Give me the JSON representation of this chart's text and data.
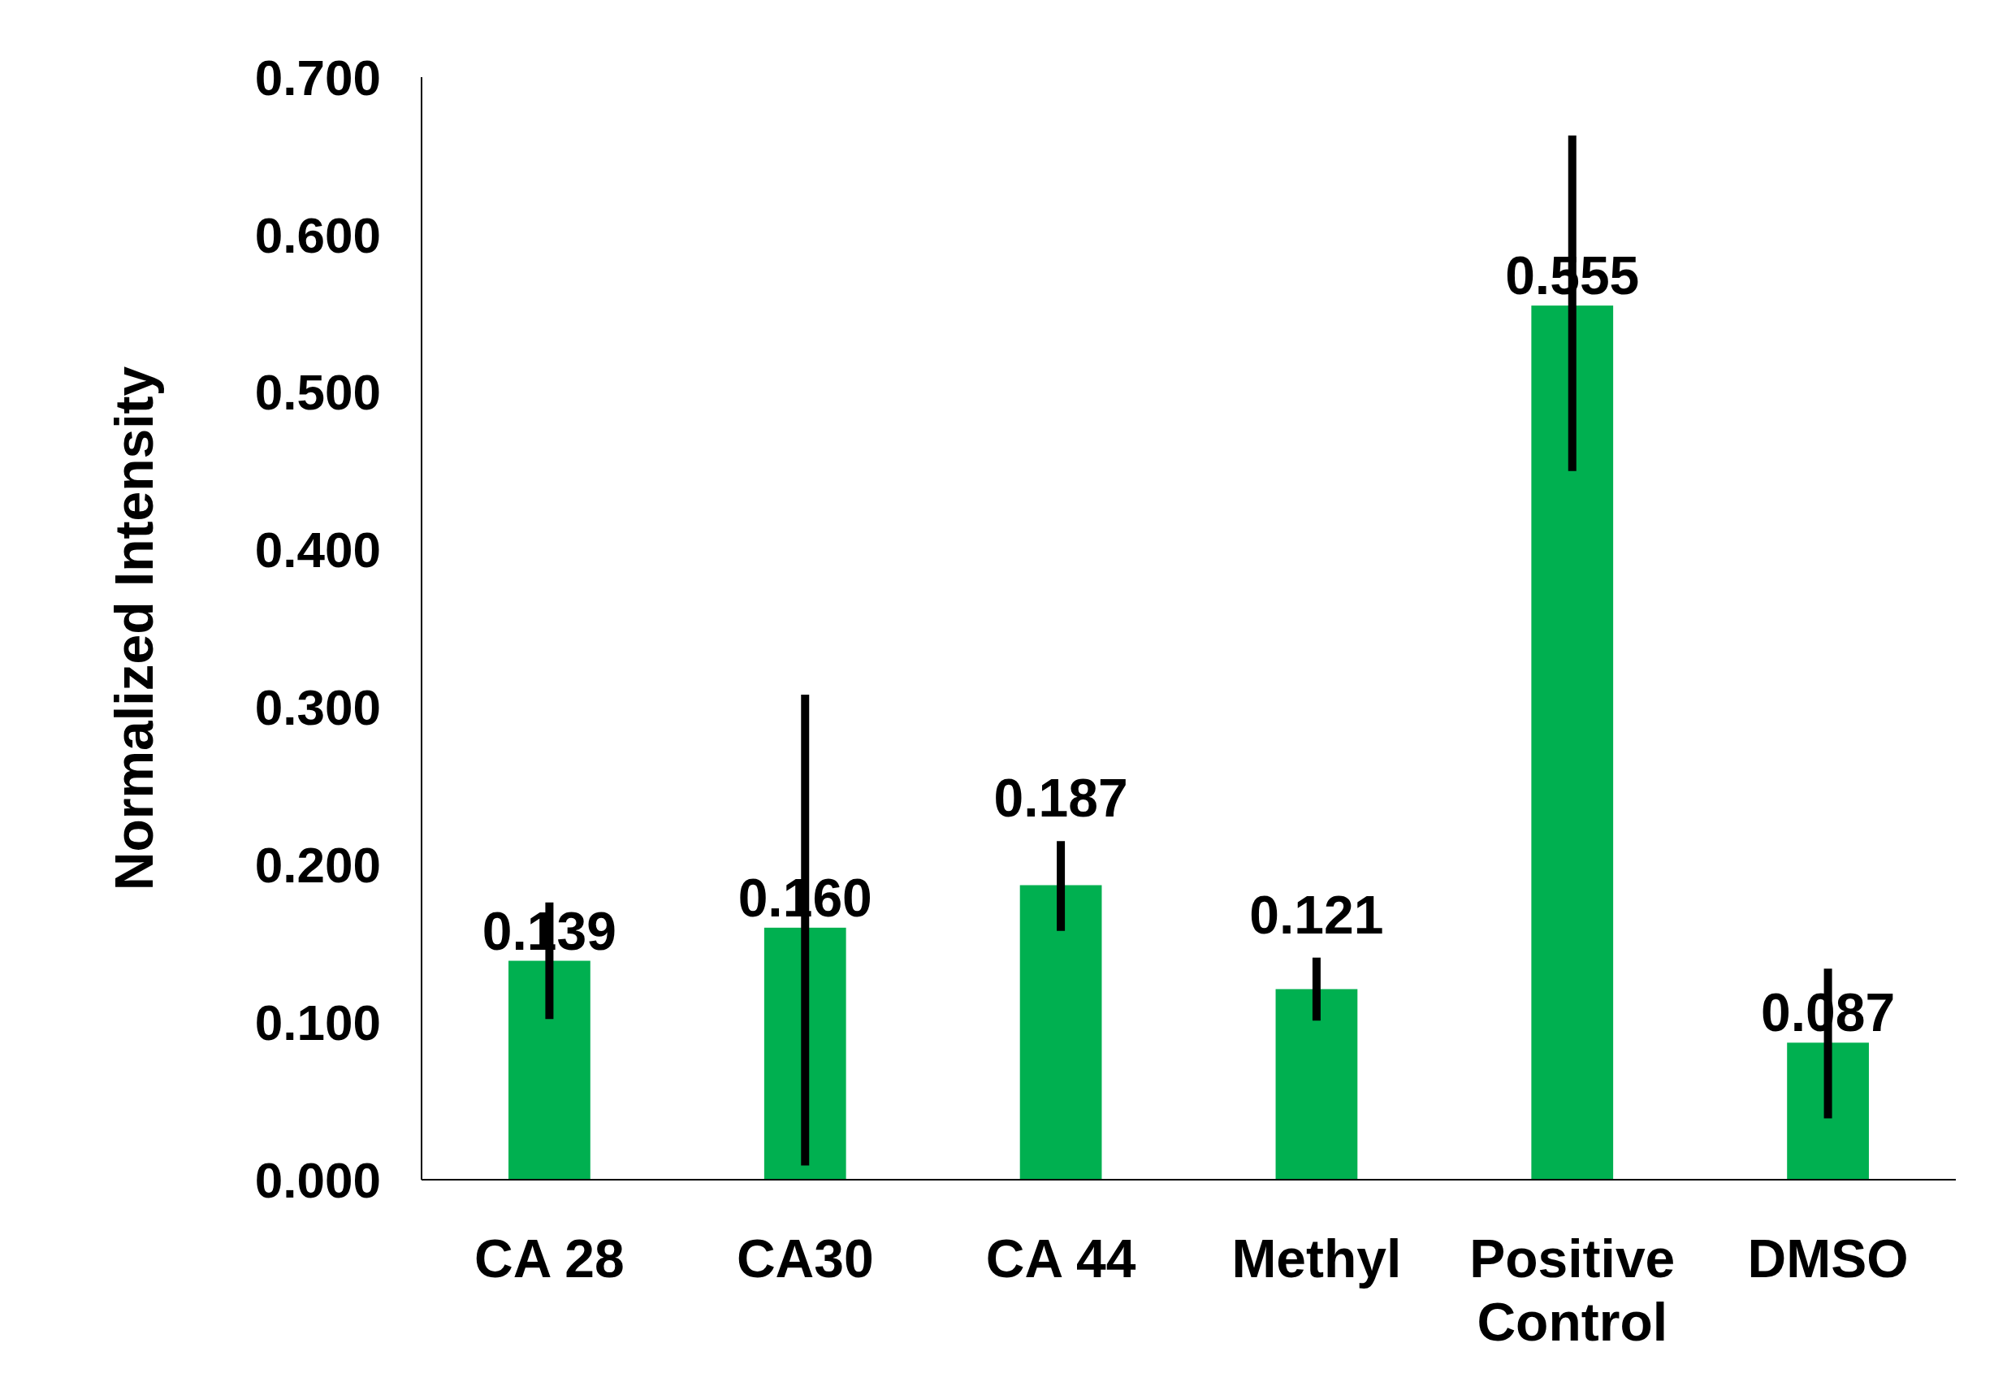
{
  "chart_data": {
    "type": "bar",
    "ylabel": "Normalized Intensity",
    "categories": [
      "CA 28",
      "CA30",
      "CA 44",
      "Methyl",
      "Positive Control",
      "DMSO"
    ],
    "values": [
      0.139,
      0.16,
      0.187,
      0.121,
      0.555,
      0.087
    ],
    "errors": [
      [
        0.102,
        0.176
      ],
      [
        0.009,
        0.308
      ],
      [
        0.158,
        0.215
      ],
      [
        0.101,
        0.141
      ],
      [
        0.45,
        0.663
      ],
      [
        0.039,
        0.134
      ]
    ],
    "value_labels": [
      "0.139",
      "0.160",
      "0.187",
      "0.121",
      "0.555",
      "0.087"
    ],
    "color": "#00b050",
    "grid": false,
    "ylim": [
      0,
      0.7
    ],
    "yticks": [
      {
        "value": 0,
        "label": "0.000"
      },
      {
        "value": 0.1,
        "label": "0.100"
      },
      {
        "value": 0.2,
        "label": "0.200"
      },
      {
        "value": 0.3,
        "label": "0.300"
      },
      {
        "value": 0.4,
        "label": "0.400"
      },
      {
        "value": 0.5,
        "label": "0.500"
      },
      {
        "value": 0.6,
        "label": "0.600"
      },
      {
        "value": 0.7,
        "label": "0.700"
      }
    ]
  }
}
